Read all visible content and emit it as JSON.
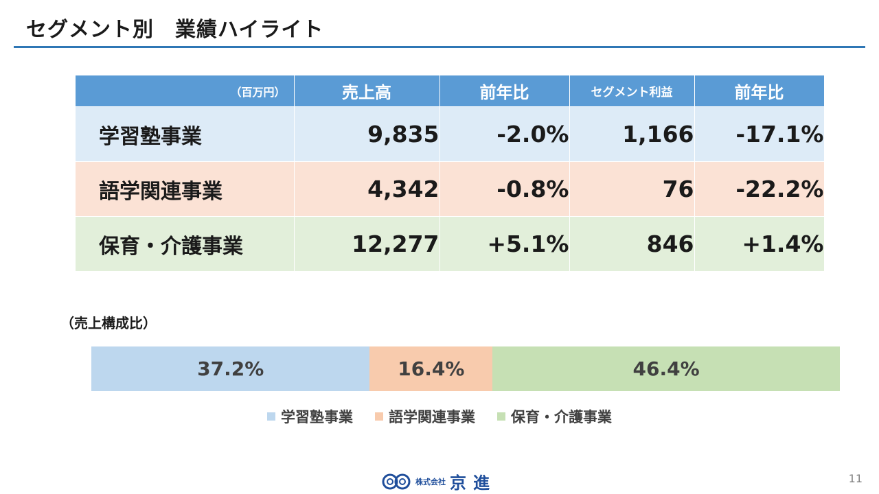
{
  "title": "セグメント別　業績ハイライト",
  "table": {
    "headers": [
      "（百万円）",
      "売上高",
      "前年比",
      "セグメント利益",
      "前年比"
    ],
    "rows": [
      {
        "name": "学習塾事業",
        "sales": "9,835",
        "sales_yoy": "-2.0%",
        "profit": "1,166",
        "profit_yoy": "-17.1%"
      },
      {
        "name": "語学関連事業",
        "sales": "4,342",
        "sales_yoy": "-0.8%",
        "profit": "76",
        "profit_yoy": "-22.2%"
      },
      {
        "name": "保育・介護事業",
        "sales": "12,277",
        "sales_yoy": "+5.1%",
        "profit": "846",
        "profit_yoy": "+1.4%"
      }
    ]
  },
  "composition": {
    "label": "（売上構成比）",
    "segments": [
      {
        "name": "学習塾事業",
        "value": 37.2,
        "label": "37.2%",
        "color": "#bdd7ee"
      },
      {
        "name": "語学関連事業",
        "value": 16.4,
        "label": "16.4%",
        "color": "#f8cbad"
      },
      {
        "name": "保育・介護事業",
        "value": 46.4,
        "label": "46.4%",
        "color": "#c6e0b4"
      }
    ]
  },
  "footer": {
    "company_prefix": "株式会社",
    "company_name": "京進",
    "page_number": "11"
  }
}
